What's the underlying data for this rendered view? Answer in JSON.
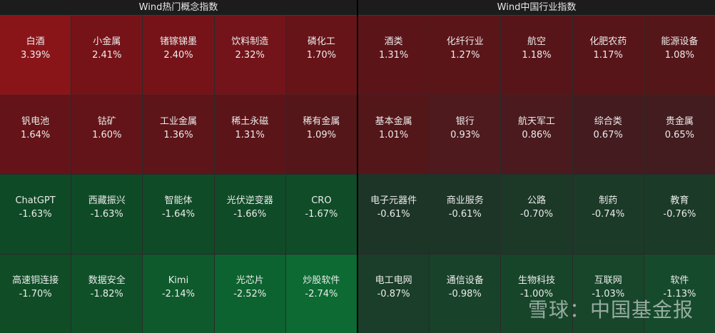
{
  "panels": [
    {
      "title": "Wind热门概念指数",
      "tiles": [
        {
          "label": "白酒",
          "value": "3.39%",
          "color": "#8a1519"
        },
        {
          "label": "小金属",
          "value": "2.41%",
          "color": "#761318"
        },
        {
          "label": "锗镓锑墨",
          "value": "2.40%",
          "color": "#751318"
        },
        {
          "label": "饮料制造",
          "value": "2.32%",
          "color": "#721419"
        },
        {
          "label": "磷化工",
          "value": "1.70%",
          "color": "#661418"
        },
        {
          "label": "钒电池",
          "value": "1.64%",
          "color": "#641418"
        },
        {
          "label": "钴矿",
          "value": "1.60%",
          "color": "#631418"
        },
        {
          "label": "工业金属",
          "value": "1.36%",
          "color": "#5d1519"
        },
        {
          "label": "稀土永磁",
          "value": "1.31%",
          "color": "#5b1519"
        },
        {
          "label": "稀有金属",
          "value": "1.09%",
          "color": "#551619"
        },
        {
          "label": "ChatGPT",
          "value": "-1.63%",
          "color": "#0f4a26"
        },
        {
          "label": "西藏振兴",
          "value": "-1.63%",
          "color": "#0f4a26"
        },
        {
          "label": "智能体",
          "value": "-1.64%",
          "color": "#0f4b26"
        },
        {
          "label": "光伏逆变器",
          "value": "-1.66%",
          "color": "#0f4b27"
        },
        {
          "label": "CRO",
          "value": "-1.67%",
          "color": "#0f4c27"
        },
        {
          "label": "高速铜连接",
          "value": "-1.70%",
          "color": "#104d27"
        },
        {
          "label": "数据安全",
          "value": "-1.82%",
          "color": "#0f5029"
        },
        {
          "label": "Kimi",
          "value": "-2.14%",
          "color": "#0e5a2c"
        },
        {
          "label": "光芯片",
          "value": "-2.52%",
          "color": "#0d632f"
        },
        {
          "label": "炒股软件",
          "value": "-2.74%",
          "color": "#0c6a32"
        }
      ]
    },
    {
      "title": "Wind中国行业指数",
      "tiles": [
        {
          "label": "酒类",
          "value": "1.31%",
          "color": "#5b1519"
        },
        {
          "label": "化纤行业",
          "value": "1.27%",
          "color": "#5a1519"
        },
        {
          "label": "航空",
          "value": "1.18%",
          "color": "#581519"
        },
        {
          "label": "化肥农药",
          "value": "1.17%",
          "color": "#581519"
        },
        {
          "label": "能源设备",
          "value": "1.08%",
          "color": "#551619"
        },
        {
          "label": "基本金属",
          "value": "1.01%",
          "color": "#531619"
        },
        {
          "label": "银行",
          "value": "0.93%",
          "color": "#4e1a1e"
        },
        {
          "label": "航天军工",
          "value": "0.86%",
          "color": "#4b1a1e"
        },
        {
          "label": "综合类",
          "value": "0.67%",
          "color": "#441c1f"
        },
        {
          "label": "贵金属",
          "value": "0.65%",
          "color": "#421c1f"
        },
        {
          "label": "电子元器件",
          "value": "-0.61%",
          "color": "#1d3526"
        },
        {
          "label": "商业服务",
          "value": "-0.61%",
          "color": "#1d3526"
        },
        {
          "label": "公路",
          "value": "-0.70%",
          "color": "#1c3827"
        },
        {
          "label": "制药",
          "value": "-0.74%",
          "color": "#1b3a28"
        },
        {
          "label": "教育",
          "value": "-0.76%",
          "color": "#1b3a28"
        },
        {
          "label": "电工电网",
          "value": "-0.87%",
          "color": "#1a3e29"
        },
        {
          "label": "通信设备",
          "value": "-0.98%",
          "color": "#19422a"
        },
        {
          "label": "生物科技",
          "value": "-1.00%",
          "color": "#17452a"
        },
        {
          "label": "互联网",
          "value": "-1.03%",
          "color": "#17462b"
        },
        {
          "label": "软件",
          "value": "-1.13%",
          "color": "#164a2c"
        }
      ]
    }
  ],
  "watermark": "雪球：中国基金报"
}
